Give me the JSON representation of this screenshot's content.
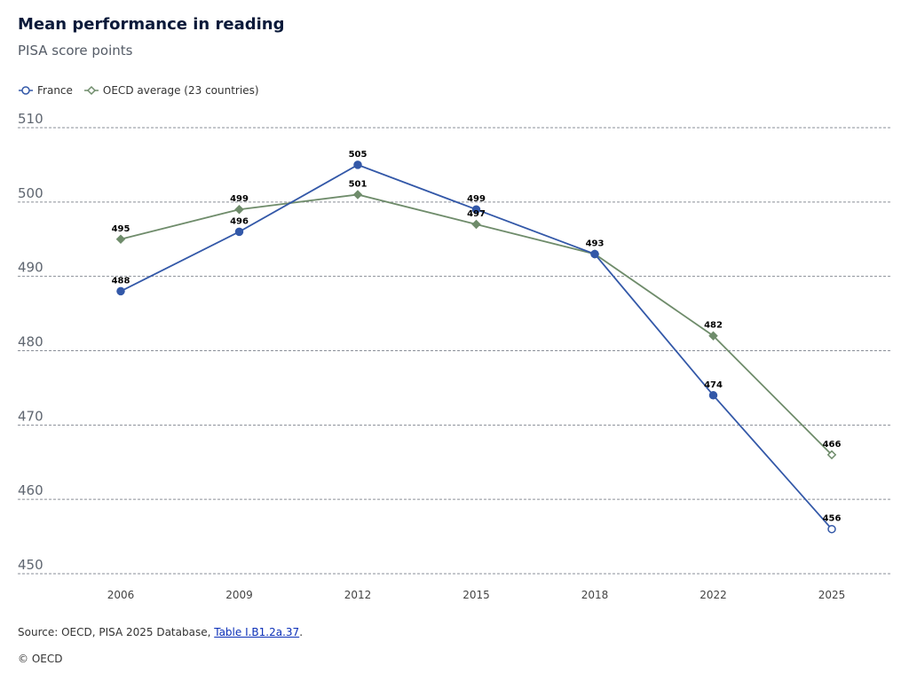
{
  "header": {
    "title": "Mean performance in reading",
    "subtitle": "PISA score points"
  },
  "footer": {
    "source_prefix": "Source: OECD, PISA 2025 Database, ",
    "source_link": "Table I.B1.2a.37",
    "source_suffix": ".",
    "copyright": "© OECD"
  },
  "chart_data": {
    "type": "line",
    "categories": [
      "2006",
      "2009",
      "2012",
      "2015",
      "2018",
      "2022",
      "2025"
    ],
    "ylim": [
      450,
      510
    ],
    "yticks": [
      450,
      460,
      470,
      480,
      490,
      500,
      510
    ],
    "grid": true,
    "legend_placement": "top-left",
    "series": [
      {
        "name": "France",
        "color": "#3358a8",
        "marker": "circle",
        "values": [
          488,
          496,
          505,
          499,
          493,
          474,
          456
        ],
        "hollow_last": true
      },
      {
        "name": "OECD average (23 countries)",
        "color": "#6f8c6b",
        "marker": "diamond",
        "values": [
          495,
          499,
          501,
          497,
          493,
          482,
          466
        ],
        "hollow_last": true
      }
    ]
  }
}
